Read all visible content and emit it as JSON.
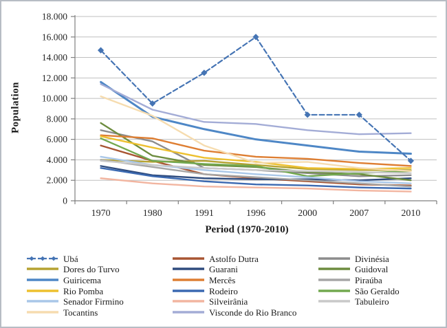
{
  "page": {
    "background_color": "#ffffff",
    "border_color": "#b7bcc4"
  },
  "chart_data": {
    "type": "line",
    "title": "",
    "x_axis_title": "Period (1970-2010)",
    "y_axis_title": "Population",
    "categories": [
      "1970",
      "1980",
      "1991",
      "1996",
      "2000",
      "2007",
      "2010"
    ],
    "ylim": [
      0,
      18000
    ],
    "ytick_step": 2000,
    "ytick_labels": [
      "0",
      "2.000",
      "4.000",
      "6.000",
      "8.000",
      "10.000",
      "12.000",
      "14.000",
      "16.000",
      "18.000"
    ],
    "grid": "horizontal-only",
    "gridline_color": "#bfbfbf",
    "axis_color": "#7f7f7f",
    "tick_label_color": "#262626",
    "legend_position": "bottom",
    "legend_columns": 3,
    "series": [
      {
        "name": "Ubá",
        "color": "#4574B4",
        "style": "dashed",
        "marker": "diamond",
        "values": [
          14700,
          9500,
          12500,
          16000,
          8400,
          8400,
          3900
        ]
      },
      {
        "name": "Astolfo Dutra",
        "color": "#A85532",
        "style": "solid",
        "marker": "none",
        "values": [
          5400,
          3900,
          2600,
          2200,
          1900,
          1600,
          1500
        ]
      },
      {
        "name": "Divinésia",
        "color": "#8C8C8C",
        "style": "solid",
        "marker": "none",
        "values": [
          6900,
          5800,
          3200,
          3000,
          2700,
          2400,
          2500
        ]
      },
      {
        "name": "Dores do Turvo",
        "color": "#B5A231",
        "style": "solid",
        "marker": "none",
        "values": [
          4000,
          3800,
          3900,
          3500,
          3100,
          3000,
          3000
        ]
      },
      {
        "name": "Guarani",
        "color": "#2F4C7E",
        "style": "solid",
        "marker": "none",
        "values": [
          3400,
          2500,
          2200,
          2100,
          2100,
          2000,
          2200
        ]
      },
      {
        "name": "Guidoval",
        "color": "#6D8C3F",
        "style": "solid",
        "marker": "none",
        "values": [
          7600,
          4400,
          3500,
          3300,
          2800,
          2600,
          2000
        ]
      },
      {
        "name": "Guiricema",
        "color": "#4E87C6",
        "style": "solid",
        "marker": "none",
        "values": [
          11600,
          8200,
          7000,
          6000,
          5400,
          4800,
          4600
        ]
      },
      {
        "name": "Mercês",
        "color": "#DE7E32",
        "style": "solid",
        "marker": "none",
        "values": [
          6400,
          6100,
          4900,
          4300,
          4100,
          3700,
          3400
        ]
      },
      {
        "name": "Piraúba",
        "color": "#A6A6A6",
        "style": "solid",
        "marker": "none",
        "values": [
          4000,
          3300,
          2600,
          2300,
          2000,
          1700,
          1400
        ]
      },
      {
        "name": "Rio Pomba",
        "color": "#EDC02F",
        "style": "solid",
        "marker": "none",
        "values": [
          6300,
          5200,
          4200,
          3800,
          3200,
          3100,
          3200
        ]
      },
      {
        "name": "Rodeiro",
        "color": "#3B69B1",
        "style": "solid",
        "marker": "none",
        "values": [
          3200,
          2400,
          1900,
          1600,
          1500,
          1300,
          1200
        ]
      },
      {
        "name": "São Geraldo",
        "color": "#72A84F",
        "style": "solid",
        "marker": "none",
        "values": [
          6100,
          3900,
          3600,
          3400,
          2400,
          2700,
          2900
        ]
      },
      {
        "name": "Senador Firmino",
        "color": "#A9C7E8",
        "style": "solid",
        "marker": "none",
        "values": [
          4300,
          3500,
          3000,
          2600,
          2300,
          1900,
          1700
        ]
      },
      {
        "name": "Silveirânia",
        "color": "#F2B5A0",
        "style": "solid",
        "marker": "none",
        "values": [
          2200,
          1700,
          1400,
          1300,
          1200,
          1000,
          900
        ]
      },
      {
        "name": "Tabuleiro",
        "color": "#C9C9C9",
        "style": "solid",
        "marker": "none",
        "values": [
          3900,
          3500,
          3200,
          3000,
          2900,
          2800,
          2700
        ]
      },
      {
        "name": "Tocantins",
        "color": "#F6DCAF",
        "style": "solid",
        "marker": "none",
        "values": [
          10200,
          8300,
          5400,
          3700,
          3800,
          3200,
          2900
        ]
      },
      {
        "name": "Visconde do Rio Branco",
        "color": "#A3ACD6",
        "style": "solid",
        "marker": "none",
        "values": [
          11400,
          8900,
          7700,
          7500,
          6900,
          6500,
          6600
        ]
      }
    ]
  }
}
